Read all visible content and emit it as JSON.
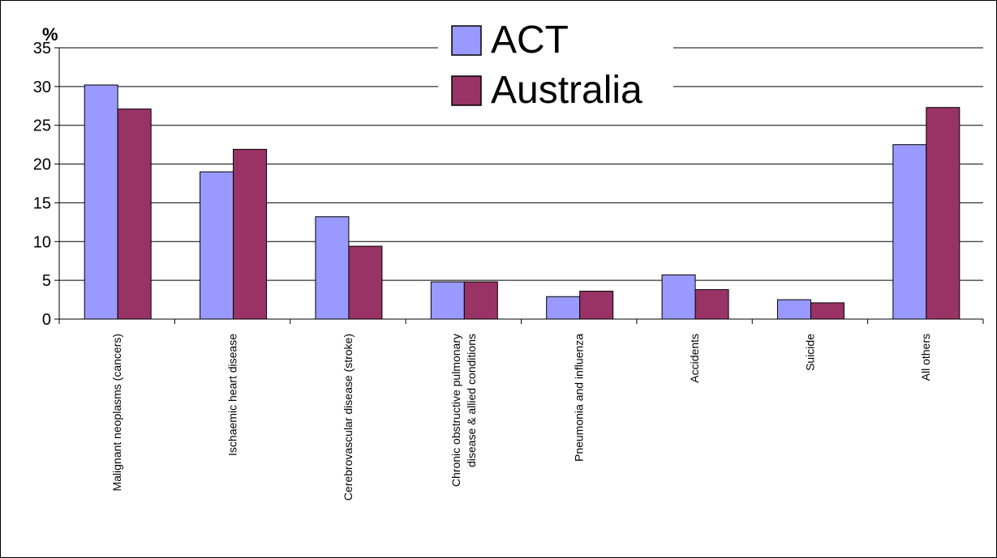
{
  "chart_data": {
    "type": "bar",
    "unit_label": "%",
    "categories": [
      [
        "Malignant neoplasms (cancers)"
      ],
      [
        "Ischaemic heart disease"
      ],
      [
        "Cerebrovascular disease (stroke)"
      ],
      [
        "Chronic obstructive pulmonary",
        "disease & allied conditions"
      ],
      [
        "Pneumonia and influenza"
      ],
      [
        "Accidents"
      ],
      [
        "Suicide"
      ],
      [
        "All others"
      ]
    ],
    "series": [
      {
        "name": "ACT",
        "color": "#9999ff",
        "values": [
          30.2,
          19.0,
          13.2,
          4.8,
          2.9,
          5.7,
          2.5,
          22.5
        ]
      },
      {
        "name": "Australia",
        "color": "#993366",
        "values": [
          27.1,
          21.9,
          9.4,
          4.8,
          3.6,
          3.8,
          2.1,
          27.3
        ]
      }
    ],
    "ylim": [
      0,
      35
    ],
    "yticks": [
      0,
      5,
      10,
      15,
      20,
      25,
      30,
      35
    ],
    "grid": true,
    "legend_position": "top-center"
  }
}
